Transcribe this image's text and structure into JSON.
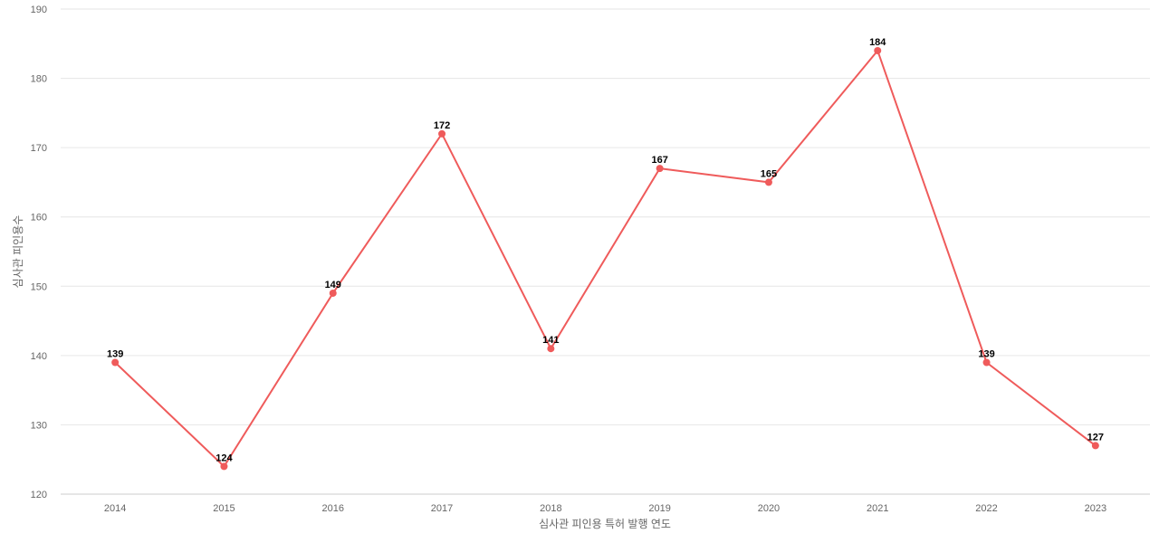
{
  "chart_data": {
    "type": "line",
    "title": "",
    "xlabel": "심사관 피인용 특허 발행 연도",
    "ylabel": "심사관 피인용수",
    "categories": [
      "2014",
      "2015",
      "2016",
      "2017",
      "2018",
      "2019",
      "2020",
      "2021",
      "2022",
      "2023"
    ],
    "series": [
      {
        "name": "",
        "values": [
          139,
          124,
          149,
          172,
          141,
          167,
          165,
          184,
          139,
          127
        ],
        "color": "#ef5b5b"
      }
    ],
    "ylim": [
      120,
      190
    ],
    "yticks": [
      120,
      130,
      140,
      150,
      160,
      170,
      180,
      190
    ],
    "grid": true,
    "legend": "none",
    "data_labels": true
  }
}
